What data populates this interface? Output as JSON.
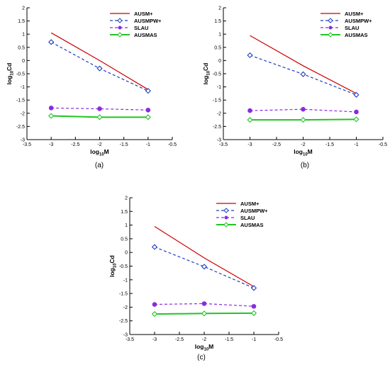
{
  "chart_data": [
    {
      "type": "line",
      "panel_label": "(a)",
      "xlabel_base": "log",
      "xlabel_sub": "10",
      "xlabel_var": "M",
      "ylabel_base": "log",
      "ylabel_sub": "10",
      "ylabel_var": "Cd",
      "xlim": [
        -3.5,
        -0.5
      ],
      "ylim": [
        -3,
        2
      ],
      "xticks": [
        -3.5,
        -3,
        -2.5,
        -2,
        -1.5,
        -1,
        -0.5
      ],
      "yticks": [
        2,
        1.5,
        1,
        0.5,
        0,
        -0.5,
        -1,
        -1.5,
        -2,
        -2.5,
        -3
      ],
      "legend_position": "top-right",
      "grid": false,
      "x": [
        -3,
        -2,
        -1
      ],
      "series": [
        {
          "name": "AUSM+",
          "values": [
            1.05,
            0.0,
            -1.1
          ],
          "color": "#cc0000",
          "style": "solid",
          "marker": "none"
        },
        {
          "name": "AUSMPW+",
          "values": [
            0.7,
            -0.3,
            -1.15
          ],
          "color": "#1f3fbf",
          "style": "dashed",
          "marker": "diamond-open"
        },
        {
          "name": "SLAU",
          "values": [
            -1.8,
            -1.83,
            -1.88
          ],
          "color": "#8a2be2",
          "style": "dashed",
          "marker": "circle-filled"
        },
        {
          "name": "AUSMAS",
          "values": [
            -2.1,
            -2.15,
            -2.15
          ],
          "color": "#22c422",
          "style": "solid",
          "marker": "diamond-open"
        }
      ]
    },
    {
      "type": "line",
      "panel_label": "(b)",
      "xlabel_base": "log",
      "xlabel_sub": "10",
      "xlabel_var": "M",
      "ylabel_base": "log",
      "ylabel_sub": "10",
      "ylabel_var": "Cd",
      "xlim": [
        -3.5,
        -0.5
      ],
      "ylim": [
        -3,
        2
      ],
      "xticks": [
        -3.5,
        -3,
        -2.5,
        -2,
        -1.5,
        -1,
        -0.5
      ],
      "yticks": [
        2,
        1.5,
        1,
        0.5,
        0,
        -0.5,
        -1,
        -1.5,
        -2,
        -2.5,
        -3
      ],
      "legend_position": "top-right",
      "grid": false,
      "x": [
        -3,
        -2,
        -1
      ],
      "series": [
        {
          "name": "AUSM+",
          "values": [
            0.95,
            -0.2,
            -1.25
          ],
          "color": "#cc0000",
          "style": "solid",
          "marker": "none"
        },
        {
          "name": "AUSMPW+",
          "values": [
            0.2,
            -0.52,
            -1.3
          ],
          "color": "#1f3fbf",
          "style": "dashed",
          "marker": "diamond-open"
        },
        {
          "name": "SLAU",
          "values": [
            -1.9,
            -1.85,
            -1.95
          ],
          "color": "#8a2be2",
          "style": "dashed",
          "marker": "circle-filled"
        },
        {
          "name": "AUSMAS",
          "values": [
            -2.25,
            -2.25,
            -2.23
          ],
          "color": "#22c422",
          "style": "solid",
          "marker": "diamond-open"
        }
      ]
    },
    {
      "type": "line",
      "panel_label": "(c)",
      "xlabel_base": "log",
      "xlabel_sub": "10",
      "xlabel_var": "M",
      "ylabel_base": "log",
      "ylabel_sub": "10",
      "ylabel_var": "Cd",
      "xlim": [
        -3.5,
        -0.5
      ],
      "ylim": [
        -3,
        2
      ],
      "xticks": [
        -3.5,
        -3,
        -2.5,
        -2,
        -1.5,
        -1,
        -0.5
      ],
      "yticks": [
        2,
        1.5,
        1,
        0.5,
        0,
        -0.5,
        -1,
        -1.5,
        -2,
        -2.5,
        -3
      ],
      "legend_position": "top-right",
      "grid": false,
      "x": [
        -3,
        -2,
        -1
      ],
      "series": [
        {
          "name": "AUSM+",
          "values": [
            0.95,
            -0.2,
            -1.25
          ],
          "color": "#cc0000",
          "style": "solid",
          "marker": "none"
        },
        {
          "name": "AUSMPW+",
          "values": [
            0.2,
            -0.52,
            -1.3
          ],
          "color": "#1f3fbf",
          "style": "dashed",
          "marker": "diamond-open"
        },
        {
          "name": "SLAU",
          "values": [
            -1.9,
            -1.87,
            -1.97
          ],
          "color": "#8a2be2",
          "style": "dashed",
          "marker": "circle-filled"
        },
        {
          "name": "AUSMAS",
          "values": [
            -2.25,
            -2.23,
            -2.22
          ],
          "color": "#22c422",
          "style": "solid",
          "marker": "diamond-open"
        }
      ]
    }
  ]
}
